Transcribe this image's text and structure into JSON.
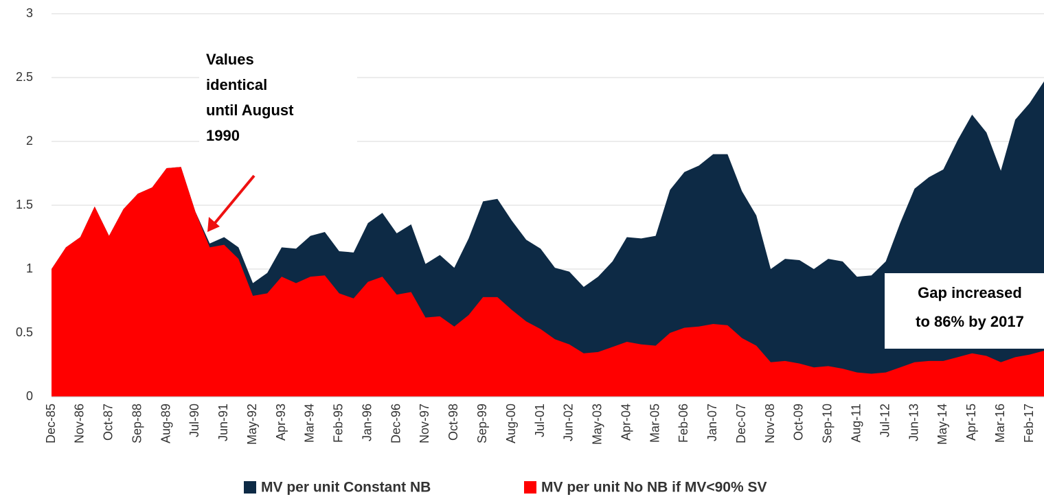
{
  "chart_data": {
    "type": "area",
    "categories": [
      "Dec-85",
      null,
      "Nov-86",
      null,
      "Oct-87",
      null,
      "Sep-88",
      null,
      "Aug-89",
      null,
      "Jul-90",
      null,
      "Jun-91",
      null,
      "May-92",
      null,
      "Apr-93",
      null,
      "Mar-94",
      null,
      "Feb-95",
      null,
      "Jan-96",
      null,
      "Dec-96",
      null,
      "Nov-97",
      null,
      "Oct-98",
      null,
      "Sep-99",
      null,
      "Aug-00",
      null,
      "Jul-01",
      null,
      "Jun-02",
      null,
      "May-03",
      null,
      "Apr-04",
      null,
      "Mar-05",
      null,
      "Feb-06",
      null,
      "Jan-07",
      null,
      "Dec-07",
      null,
      "Nov-08",
      null,
      "Oct-09",
      null,
      "Sep-10",
      null,
      "Aug-11",
      null,
      "Jul-12",
      null,
      "Jun-13",
      null,
      "May-14",
      null,
      "Apr-15",
      null,
      "Mar-16",
      null,
      "Feb-17",
      null
    ],
    "series": [
      {
        "name": "MV per unit Constant NB",
        "color": "#0d2a45",
        "values": [
          1.0,
          1.17,
          1.25,
          1.49,
          1.26,
          1.47,
          1.59,
          1.64,
          1.79,
          1.8,
          1.45,
          1.2,
          1.25,
          1.17,
          0.89,
          0.97,
          1.17,
          1.16,
          1.26,
          1.29,
          1.14,
          1.13,
          1.36,
          1.44,
          1.28,
          1.35,
          1.04,
          1.11,
          1.01,
          1.24,
          1.53,
          1.55,
          1.38,
          1.23,
          1.16,
          1.01,
          0.98,
          0.86,
          0.94,
          1.06,
          1.25,
          1.24,
          1.26,
          1.62,
          1.76,
          1.81,
          1.9,
          1.9,
          1.61,
          1.42,
          1.0,
          1.08,
          1.07,
          1.0,
          1.08,
          1.06,
          0.94,
          0.95,
          1.06,
          1.36,
          1.63,
          1.72,
          1.78,
          2.01,
          2.21,
          2.07,
          1.77,
          2.17,
          2.3,
          2.47
        ]
      },
      {
        "name": "MV per unit No NB if MV<90% SV",
        "color": "#ff0000",
        "values": [
          1.0,
          1.17,
          1.25,
          1.49,
          1.26,
          1.47,
          1.59,
          1.64,
          1.79,
          1.8,
          1.45,
          1.17,
          1.19,
          1.08,
          0.79,
          0.81,
          0.94,
          0.89,
          0.94,
          0.95,
          0.81,
          0.77,
          0.9,
          0.94,
          0.8,
          0.82,
          0.62,
          0.63,
          0.55,
          0.64,
          0.78,
          0.78,
          0.68,
          0.59,
          0.53,
          0.45,
          0.41,
          0.34,
          0.35,
          0.39,
          0.43,
          0.41,
          0.4,
          0.5,
          0.54,
          0.55,
          0.57,
          0.56,
          0.46,
          0.4,
          0.27,
          0.28,
          0.26,
          0.23,
          0.24,
          0.22,
          0.19,
          0.18,
          0.19,
          0.23,
          0.27,
          0.28,
          0.28,
          0.31,
          0.34,
          0.32,
          0.27,
          0.31,
          0.33,
          0.36
        ]
      }
    ],
    "ylim": [
      0,
      3
    ],
    "yticks": [
      0,
      0.5,
      1,
      1.5,
      2,
      2.5,
      3
    ],
    "grid": true,
    "annotations": [
      {
        "lines": [
          "Values",
          "identical",
          "until August",
          "1990"
        ]
      },
      {
        "lines": [
          "Gap increased",
          "to 86% by 2017"
        ]
      }
    ],
    "legend": "bottom"
  }
}
